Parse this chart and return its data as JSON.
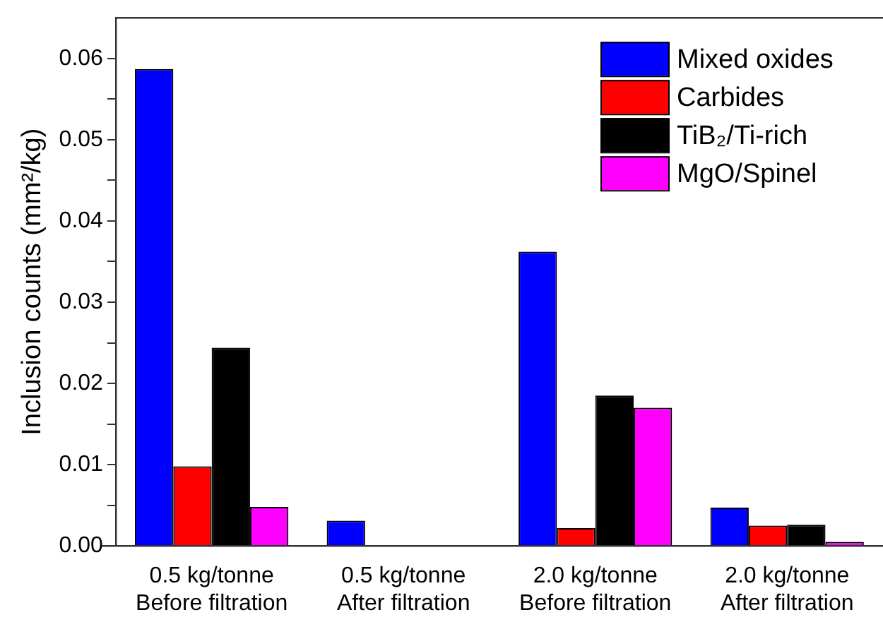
{
  "chart_data": {
    "type": "bar",
    "ylabel": "Inclusion counts (mm²/kg)",
    "categories": [
      "0.5 kg/tonne\nBefore filtration",
      "0.5 kg/tonne\nAfter filtration",
      "2.0 kg/tonne\nBefore filtration",
      "2.0 kg/tonne\nAfter filtration"
    ],
    "series": [
      {
        "name": "Mixed oxides",
        "color": "#0000ff",
        "values": [
          0.0587,
          0.0031,
          0.0362,
          0.0047
        ]
      },
      {
        "name": "Carbides",
        "color": "#ff0000",
        "values": [
          0.0098,
          0,
          0.0022,
          0.0025
        ]
      },
      {
        "name": "TiB₂/Ti-rich",
        "color": "#000000",
        "values": [
          0.0244,
          0,
          0.0185,
          0.0026
        ]
      },
      {
        "name": "MgO/Spinel",
        "color": "#ff00ff",
        "values": [
          0.0048,
          0,
          0.017,
          0.0005
        ]
      }
    ],
    "ylim": [
      0,
      0.065
    ],
    "yticks": [
      {
        "value": 0,
        "label": "0.00"
      },
      {
        "value": 0.005,
        "label": null
      },
      {
        "value": 0.01,
        "label": "0.01"
      },
      {
        "value": 0.015,
        "label": null
      },
      {
        "value": 0.02,
        "label": "0.02"
      },
      {
        "value": 0.025,
        "label": null
      },
      {
        "value": 0.03,
        "label": "0.03"
      },
      {
        "value": 0.035,
        "label": null
      },
      {
        "value": 0.04,
        "label": "0.04"
      },
      {
        "value": 0.045,
        "label": null
      },
      {
        "value": 0.05,
        "label": "0.05"
      },
      {
        "value": 0.055,
        "label": null
      },
      {
        "value": 0.06,
        "label": "0.06"
      }
    ],
    "grid": false,
    "legend": "top right"
  }
}
